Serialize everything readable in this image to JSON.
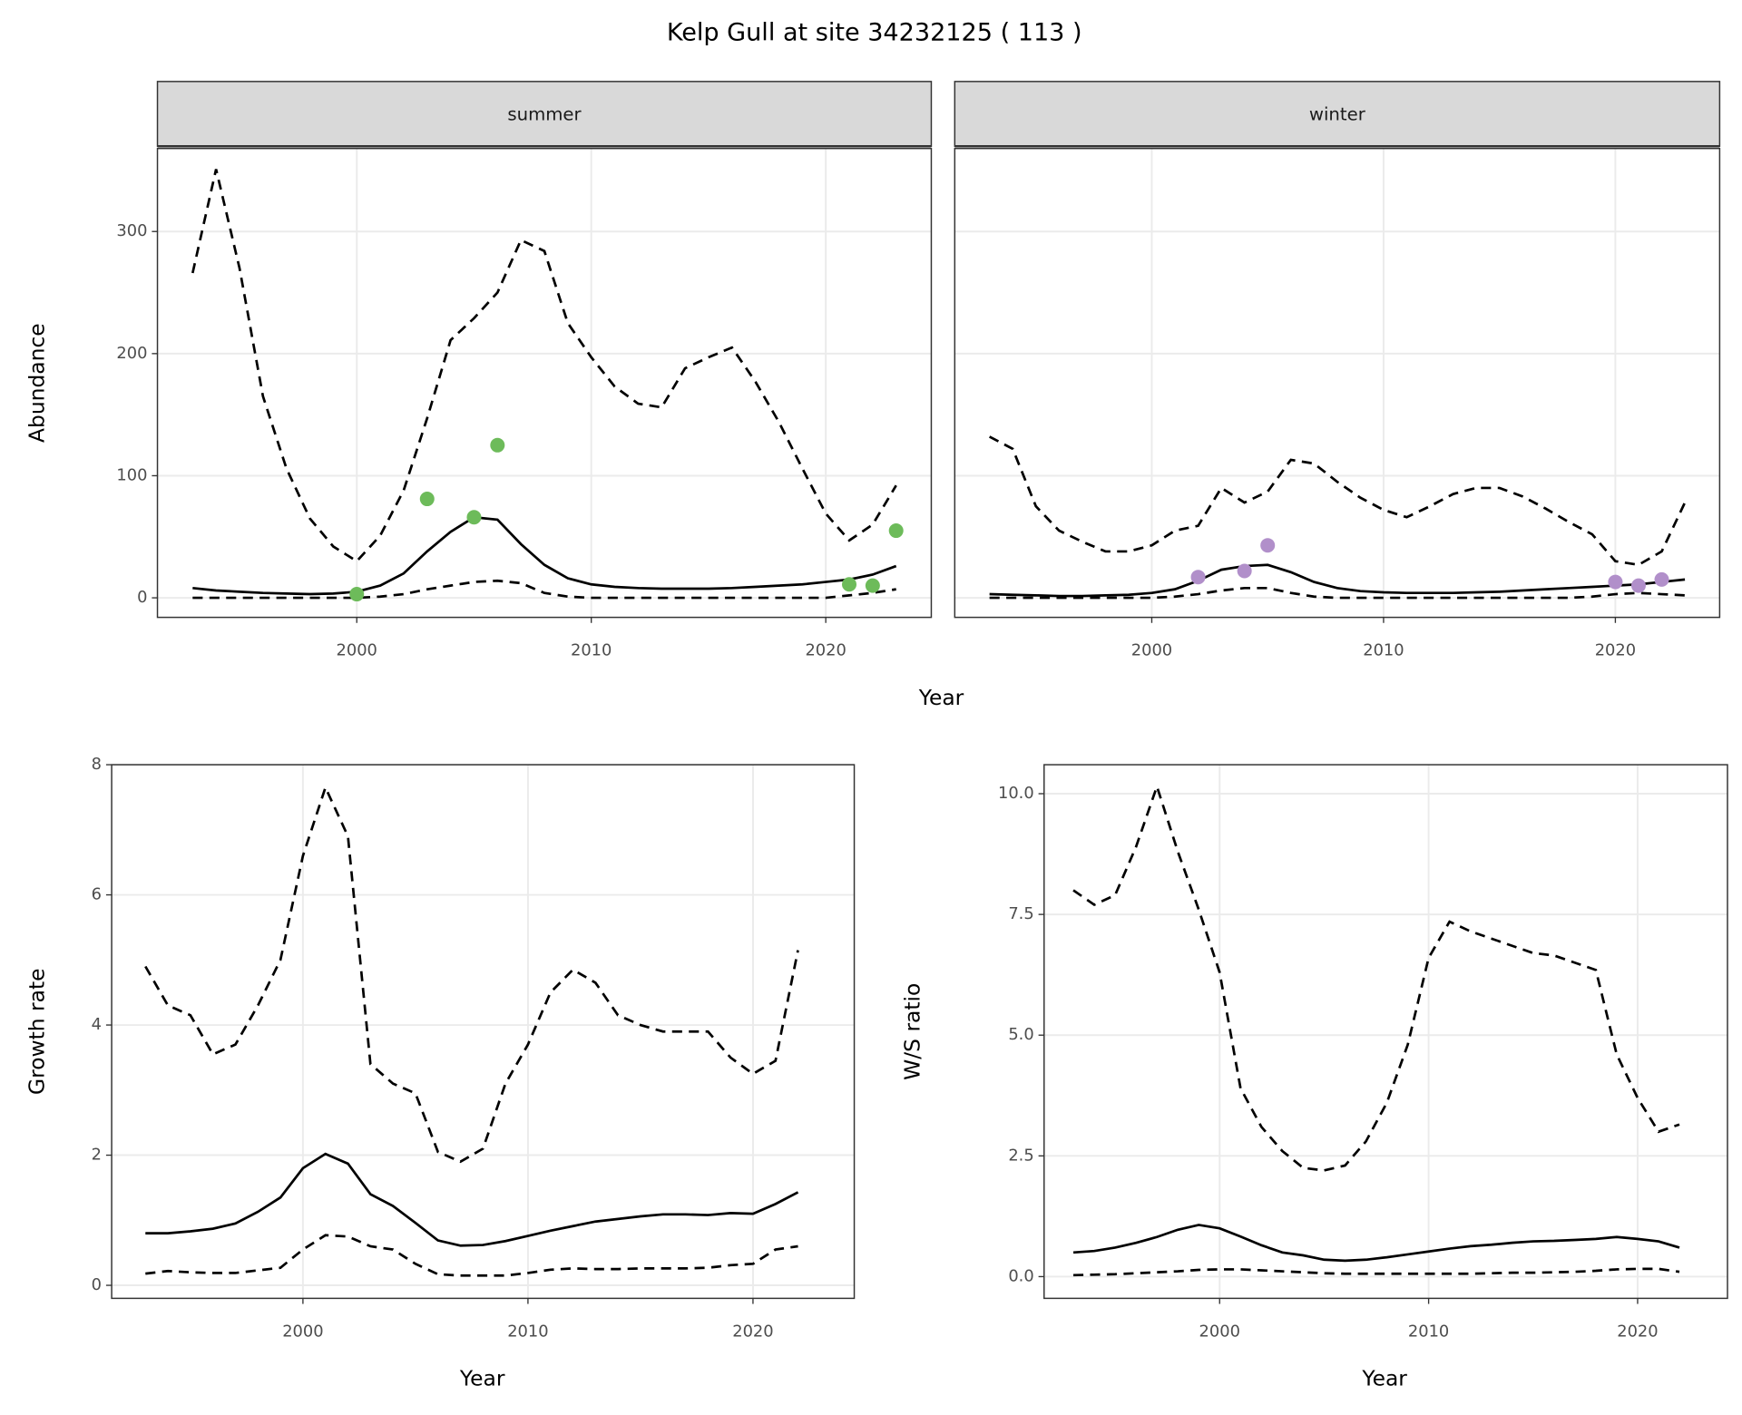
{
  "title": "Kelp Gull at site 34232125 ( 113 )",
  "chart_data": [
    {
      "type": "line",
      "facet": "summer",
      "ylabel": "Abundance",
      "xlabel": "Year",
      "xlim": [
        1991.5,
        2024.5
      ],
      "xticks": [
        2000,
        2010,
        2020
      ],
      "ylim": [
        -16,
        368
      ],
      "yticks": [
        0,
        100,
        200,
        300
      ],
      "grid": true,
      "x": [
        1993,
        1994,
        1995,
        1996,
        1997,
        1998,
        1999,
        2000,
        2001,
        2002,
        2003,
        2004,
        2005,
        2006,
        2007,
        2008,
        2009,
        2010,
        2011,
        2012,
        2013,
        2014,
        2015,
        2016,
        2017,
        2018,
        2019,
        2020,
        2021,
        2022,
        2023
      ],
      "series": [
        {
          "color": "#000000",
          "dashed": true,
          "values": [
            266,
            351,
            270,
            165,
            106,
            65,
            42,
            30,
            51,
            88,
            147,
            211,
            229,
            250,
            293,
            284,
            225,
            197,
            173,
            159,
            156,
            188,
            197,
            205,
            177,
            144,
            106,
            69,
            47,
            60,
            92
          ]
        },
        {
          "color": "#000000",
          "dashed": false,
          "values": [
            8,
            6,
            5,
            4,
            3.5,
            3,
            3.5,
            5,
            10,
            20,
            38,
            54,
            66,
            64,
            44,
            27,
            16,
            11,
            9,
            8,
            7.5,
            7.5,
            7.5,
            8,
            9,
            10,
            11,
            13,
            15,
            19,
            26
          ]
        },
        {
          "color": "#000000",
          "dashed": true,
          "values": [
            0,
            0,
            0,
            0,
            0,
            0,
            0,
            0,
            1,
            3,
            7,
            10,
            13,
            14,
            12,
            4,
            1,
            0,
            0,
            0,
            0,
            0,
            0,
            0,
            0,
            0,
            0,
            0,
            2,
            4,
            7
          ]
        }
      ],
      "points": {
        "color": "#6dbb5a",
        "x": [
          2000,
          2003,
          2005,
          2006,
          2021,
          2022,
          2023
        ],
        "values": [
          3,
          81,
          66,
          125,
          11,
          10,
          55
        ]
      }
    },
    {
      "type": "line",
      "facet": "winter",
      "xlim": [
        1991.5,
        2024.5
      ],
      "xticks": [
        2000,
        2010,
        2020
      ],
      "ylim": [
        -16,
        368
      ],
      "yticks": [
        0,
        100,
        200,
        300
      ],
      "grid": true,
      "x": [
        1993,
        1994,
        1995,
        1996,
        1997,
        1998,
        1999,
        2000,
        2001,
        2002,
        2003,
        2004,
        2005,
        2006,
        2007,
        2008,
        2009,
        2010,
        2011,
        2012,
        2013,
        2014,
        2015,
        2016,
        2017,
        2018,
        2019,
        2020,
        2021,
        2022,
        2023
      ],
      "series": [
        {
          "color": "#000000",
          "dashed": true,
          "values": [
            132,
            122,
            75,
            55,
            46,
            38,
            38,
            43,
            55,
            59,
            90,
            78,
            87,
            113,
            110,
            95,
            82,
            72,
            66,
            75,
            85,
            90,
            90,
            83,
            73,
            62,
            52,
            30,
            27,
            38,
            78
          ]
        },
        {
          "color": "#000000",
          "dashed": false,
          "values": [
            3,
            2.5,
            2,
            1.5,
            1.5,
            2,
            2.5,
            4,
            7,
            14,
            23,
            26,
            27,
            21,
            13,
            8,
            5.5,
            4.5,
            4,
            4,
            4,
            4.5,
            5,
            6,
            7,
            8,
            9,
            10,
            11,
            13,
            15
          ]
        },
        {
          "color": "#000000",
          "dashed": true,
          "values": [
            0,
            0,
            0,
            0,
            0,
            0,
            0,
            0,
            1,
            3,
            6,
            8,
            8,
            4,
            1,
            0,
            0,
            0,
            0,
            0,
            0,
            0,
            0,
            0,
            0,
            0,
            1,
            3,
            4,
            3,
            2
          ]
        }
      ],
      "points": {
        "color": "#b18fca",
        "x": [
          2002,
          2004,
          2005,
          2020,
          2021,
          2022
        ],
        "values": [
          17,
          22,
          43,
          13,
          10,
          15
        ]
      }
    },
    {
      "type": "line",
      "ylabel": "Growth rate",
      "xlabel": "Year",
      "xlim": [
        1991.5,
        2024.5
      ],
      "xticks": [
        2000,
        2010,
        2020
      ],
      "ylim": [
        -0.2,
        8
      ],
      "yticks": [
        0,
        2,
        4,
        6,
        8
      ],
      "grid": true,
      "x": [
        1993,
        1994,
        1995,
        1996,
        1997,
        1998,
        1999,
        2000,
        2001,
        2002,
        2003,
        2004,
        2005,
        2006,
        2007,
        2008,
        2009,
        2010,
        2011,
        2012,
        2013,
        2014,
        2015,
        2016,
        2017,
        2018,
        2019,
        2020,
        2021,
        2022
      ],
      "series": [
        {
          "color": "#000000",
          "dashed": true,
          "values": [
            4.9,
            4.3,
            4.15,
            3.55,
            3.7,
            4.3,
            5.0,
            6.6,
            7.65,
            6.9,
            3.4,
            3.1,
            2.95,
            2.05,
            1.9,
            2.1,
            3.1,
            3.7,
            4.5,
            4.85,
            4.65,
            4.15,
            4.0,
            3.9,
            3.9,
            3.9,
            3.5,
            3.25,
            3.45,
            5.15
          ]
        },
        {
          "color": "#000000",
          "dashed": false,
          "values": [
            0.8,
            0.8,
            0.83,
            0.87,
            0.95,
            1.13,
            1.35,
            1.8,
            2.02,
            1.87,
            1.4,
            1.22,
            0.96,
            0.69,
            0.61,
            0.62,
            0.68,
            0.76,
            0.84,
            0.91,
            0.98,
            1.02,
            1.06,
            1.09,
            1.09,
            1.08,
            1.11,
            1.1,
            1.25,
            1.43
          ]
        },
        {
          "color": "#000000",
          "dashed": true,
          "values": [
            0.18,
            0.22,
            0.2,
            0.19,
            0.19,
            0.23,
            0.27,
            0.55,
            0.77,
            0.75,
            0.6,
            0.55,
            0.33,
            0.17,
            0.15,
            0.15,
            0.15,
            0.19,
            0.24,
            0.26,
            0.25,
            0.25,
            0.26,
            0.26,
            0.26,
            0.27,
            0.31,
            0.33,
            0.55,
            0.6
          ]
        }
      ]
    },
    {
      "type": "line",
      "ylabel": "W/S ratio",
      "xlabel": "Year",
      "xlim": [
        1991.6,
        2024.3
      ],
      "xticks": [
        2000,
        2010,
        2020
      ],
      "ylim": [
        -0.45,
        10.6
      ],
      "yticks": [
        {
          "value": 0,
          "label": "0.0"
        },
        {
          "value": 2.5,
          "label": "2.5"
        },
        {
          "value": 5,
          "label": "5.0"
        },
        {
          "value": 7.5,
          "label": "7.5"
        },
        {
          "value": 10,
          "label": "10.0"
        }
      ],
      "grid": true,
      "x": [
        1993,
        1994,
        1995,
        1996,
        1997,
        1998,
        1999,
        2000,
        2001,
        2002,
        2003,
        2004,
        2005,
        2006,
        2007,
        2008,
        2009,
        2010,
        2011,
        2012,
        2013,
        2014,
        2015,
        2016,
        2017,
        2018,
        2019,
        2020,
        2021,
        2022
      ],
      "series": [
        {
          "color": "#000000",
          "dashed": true,
          "values": [
            8.0,
            7.7,
            7.9,
            8.9,
            10.15,
            8.8,
            7.6,
            6.3,
            3.9,
            3.1,
            2.6,
            2.25,
            2.2,
            2.3,
            2.8,
            3.6,
            4.8,
            6.6,
            7.35,
            7.15,
            7.0,
            6.85,
            6.7,
            6.65,
            6.5,
            6.35,
            4.6,
            3.7,
            3.0,
            3.15
          ]
        },
        {
          "color": "#000000",
          "dashed": false,
          "values": [
            0.5,
            0.53,
            0.6,
            0.7,
            0.82,
            0.97,
            1.07,
            1.0,
            0.83,
            0.65,
            0.5,
            0.44,
            0.35,
            0.33,
            0.35,
            0.4,
            0.46,
            0.52,
            0.58,
            0.63,
            0.66,
            0.7,
            0.73,
            0.74,
            0.76,
            0.78,
            0.82,
            0.78,
            0.73,
            0.6
          ]
        },
        {
          "color": "#000000",
          "dashed": true,
          "values": [
            0.03,
            0.04,
            0.05,
            0.07,
            0.09,
            0.11,
            0.14,
            0.15,
            0.15,
            0.13,
            0.11,
            0.09,
            0.07,
            0.06,
            0.06,
            0.06,
            0.06,
            0.06,
            0.06,
            0.06,
            0.07,
            0.08,
            0.08,
            0.09,
            0.1,
            0.12,
            0.15,
            0.16,
            0.16,
            0.1
          ]
        }
      ]
    }
  ]
}
